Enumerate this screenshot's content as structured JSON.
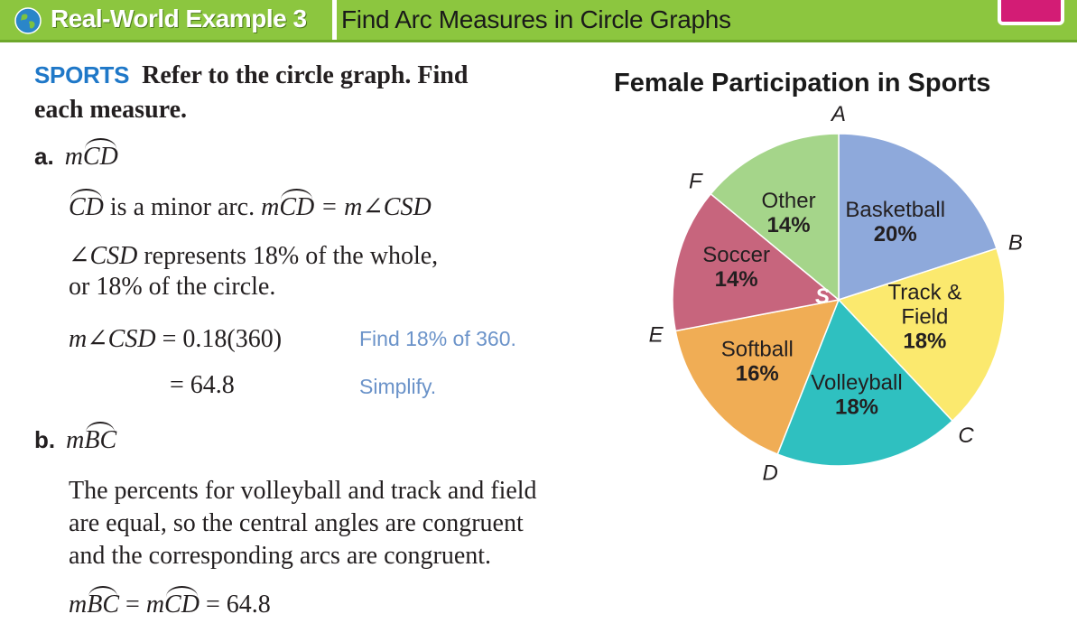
{
  "header": {
    "label": "Real-World Example 3",
    "title": "Find Arc Measures in Circle Graphs"
  },
  "intro": {
    "tag": "SPORTS",
    "text_line1": "Refer to the circle graph. Find",
    "text_line2": "each measure."
  },
  "part_a": {
    "label": "a.",
    "m": "m",
    "arc": "CD",
    "line1": {
      "arc": "CD",
      "text": " is a minor arc. ",
      "m": "m",
      "arc2": "CD",
      "rhs": " = m∠CSD"
    },
    "line2": {
      "angle": "∠CSD",
      "text": " represents 18% of the whole,"
    },
    "line3": "or 18% of the circle.",
    "step1": {
      "lhs": "m∠CSD",
      "rhs": " = 0.18(360)",
      "note": "Find 18% of 360."
    },
    "step2": {
      "rhs": "= 64.8",
      "note": "Simplify."
    }
  },
  "part_b": {
    "label": "b.",
    "m": "m",
    "arc": "BC",
    "para1": "The percents for volleyball and track and field",
    "para2": "are equal, so the central angles are congruent",
    "para3": "and the corresponding arcs are congruent.",
    "result": {
      "m1": "m",
      "arc1": "BC",
      "eq1": " = ",
      "m2": "m",
      "arc2": "CD",
      "eq2": " = 64.8"
    }
  },
  "chart_data": {
    "type": "pie",
    "title": "Female Participation in Sports",
    "center_label": "S",
    "slices": [
      {
        "name": "Basketball",
        "lines": [
          "Basketball"
        ],
        "percent": 20,
        "pct_label": "20%",
        "color": "#8ea9db"
      },
      {
        "name": "Track & Field",
        "lines": [
          "Track &",
          "Field"
        ],
        "percent": 18,
        "pct_label": "18%",
        "color": "#fbe96e"
      },
      {
        "name": "Volleyball",
        "lines": [
          "Volleyball"
        ],
        "percent": 18,
        "pct_label": "18%",
        "color": "#2fc0c0"
      },
      {
        "name": "Softball",
        "lines": [
          "Softball"
        ],
        "percent": 16,
        "pct_label": "16%",
        "color": "#f0ad55"
      },
      {
        "name": "Soccer",
        "lines": [
          "Soccer"
        ],
        "percent": 14,
        "pct_label": "14%",
        "color": "#c7657d"
      },
      {
        "name": "Other",
        "lines": [
          "Other"
        ],
        "percent": 14,
        "pct_label": "14%",
        "color": "#a5d58a"
      }
    ],
    "points": [
      "A",
      "B",
      "C",
      "D",
      "E",
      "F"
    ]
  }
}
